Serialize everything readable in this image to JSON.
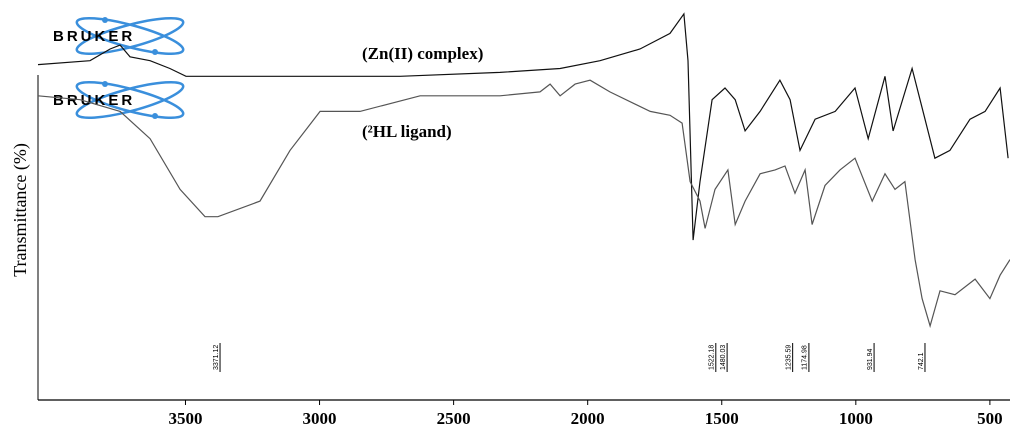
{
  "chart_data": {
    "type": "line",
    "y_label": "Transmittance (%)",
    "xlim": [
      4050,
      425
    ],
    "ylim": [
      0,
      100
    ],
    "xticks": [
      3500,
      3000,
      2500,
      2000,
      1500,
      1000,
      500
    ],
    "logos": [
      "BRUKER",
      "BRUKER"
    ],
    "annotations": [
      "(Zn(II) complex)",
      "(²HL ligand)"
    ],
    "peaks": [
      3371.12,
      1522.18,
      1480.03,
      1235.59,
      1174.98,
      931.94,
      742.1
    ],
    "series": [
      {
        "name": "Zn(II) complex",
        "color": "#111111",
        "x": [
          4050,
          3856,
          3781,
          3744,
          3707,
          3632,
          3558,
          3498,
          3073,
          2700,
          2327,
          2103,
          1954,
          1805,
          1693,
          1641,
          1626,
          1607,
          1581,
          1536,
          1488,
          1450,
          1413,
          1357,
          1283,
          1245,
          1208,
          1152,
          1077,
          1003,
          954,
          891,
          861,
          790,
          742,
          705,
          649,
          574,
          518,
          462,
          432
        ],
        "values": [
          86,
          87,
          90,
          91,
          88,
          87,
          85,
          83,
          83,
          83,
          84,
          85,
          87,
          90,
          94,
          99,
          87,
          41,
          56,
          77,
          80,
          77,
          69,
          74,
          82,
          77,
          64,
          72,
          74,
          80,
          67,
          83,
          69,
          85,
          72,
          62,
          64,
          72,
          74,
          80,
          62
        ]
      },
      {
        "name": "²HL ligand",
        "color": "#555555",
        "x": [
          4050,
          3893,
          3744,
          3632,
          3520,
          3427,
          3379,
          3222,
          3110,
          2998,
          2849,
          2625,
          2327,
          2178,
          2140,
          2103,
          2047,
          1991,
          1917,
          1767,
          1693,
          1648,
          1618,
          1581,
          1562,
          1525,
          1477,
          1450,
          1413,
          1357,
          1301,
          1264,
          1227,
          1189,
          1163,
          1115,
          1059,
          1003,
          939,
          891,
          854,
          817,
          779,
          753,
          723,
          686,
          630,
          555,
          500,
          462,
          425
        ],
        "values": [
          78,
          77,
          74,
          67,
          54,
          47,
          47,
          51,
          64,
          74,
          74,
          78,
          78,
          79,
          81,
          78,
          81,
          82,
          79,
          74,
          73,
          71,
          56,
          51,
          44,
          54,
          59,
          45,
          51,
          58,
          59,
          60,
          53,
          59,
          45,
          55,
          59,
          62,
          51,
          58,
          54,
          56,
          36,
          26,
          19,
          28,
          27,
          31,
          26,
          32,
          36
        ]
      }
    ]
  }
}
